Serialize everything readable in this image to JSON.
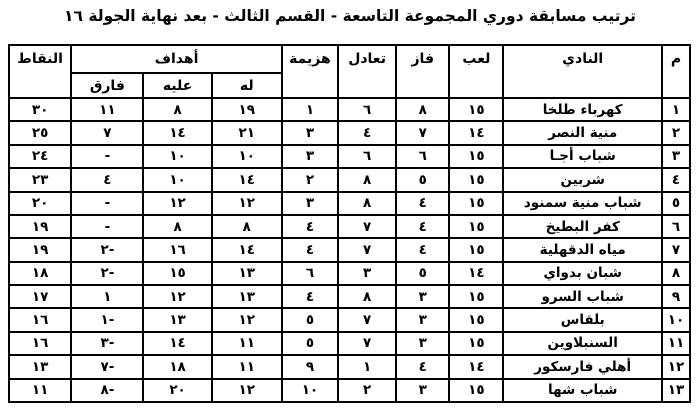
{
  "title": "ترتيب مسابقة دوري المجموعة التاسعة - القسم الثالث - بعد نهاية الجولة ١٦",
  "table": {
    "headers": {
      "rank": "م",
      "club": "النادي",
      "played": "لعب",
      "won": "فاز",
      "drawn": "تعادل",
      "lost": "هزيمة",
      "goals_group": "أهداف",
      "goals_for": "له",
      "goals_against": "عليه",
      "goal_diff": "فارق",
      "points": "النقاط"
    },
    "rows": [
      {
        "rank": "١",
        "club": "كهرباء طلخا",
        "played": "١٥",
        "won": "٨",
        "drawn": "٦",
        "lost": "١",
        "goals_for": "١٩",
        "goals_against": "٨",
        "goal_diff": "١١",
        "points": "٣٠"
      },
      {
        "rank": "٢",
        "club": "منية النصر",
        "played": "١٤",
        "won": "٧",
        "drawn": "٤",
        "lost": "٣",
        "goals_for": "٢١",
        "goals_against": "١٤",
        "goal_diff": "٧",
        "points": "٢٥"
      },
      {
        "rank": "٣",
        "club": "شباب أجـا",
        "played": "١٥",
        "won": "٦",
        "drawn": "٦",
        "lost": "٣",
        "goals_for": "١٠",
        "goals_against": "١٠",
        "goal_diff": "-",
        "points": "٢٤"
      },
      {
        "rank": "٤",
        "club": "شربين",
        "played": "١٥",
        "won": "٥",
        "drawn": "٨",
        "lost": "٢",
        "goals_for": "١٤",
        "goals_against": "١٠",
        "goal_diff": "٤",
        "points": "٢٣"
      },
      {
        "rank": "٥",
        "club": "شباب منية سمنود",
        "played": "١٥",
        "won": "٤",
        "drawn": "٨",
        "lost": "٣",
        "goals_for": "١٢",
        "goals_against": "١٢",
        "goal_diff": "-",
        "points": "٢٠"
      },
      {
        "rank": "٦",
        "club": "كفر البطيخ",
        "played": "١٥",
        "won": "٤",
        "drawn": "٧",
        "lost": "٤",
        "goals_for": "٨",
        "goals_against": "٨",
        "goal_diff": "-",
        "points": "١٩"
      },
      {
        "rank": "٧",
        "club": "مياه الدقهلية",
        "played": "١٥",
        "won": "٤",
        "drawn": "٧",
        "lost": "٤",
        "goals_for": "١٤",
        "goals_against": "١٦",
        "goal_diff": "٢-",
        "points": "١٩"
      },
      {
        "rank": "٨",
        "club": "شبان بدواي",
        "played": "١٤",
        "won": "٥",
        "drawn": "٣",
        "lost": "٦",
        "goals_for": "١٣",
        "goals_against": "١٥",
        "goal_diff": "٢-",
        "points": "١٨"
      },
      {
        "rank": "٩",
        "club": "شباب السرو",
        "played": "١٥",
        "won": "٣",
        "drawn": "٨",
        "lost": "٤",
        "goals_for": "١٣",
        "goals_against": "١٢",
        "goal_diff": "١",
        "points": "١٧"
      },
      {
        "rank": "١٠",
        "club": "بلقاس",
        "played": "١٥",
        "won": "٣",
        "drawn": "٧",
        "lost": "٥",
        "goals_for": "١٢",
        "goals_against": "١٣",
        "goal_diff": "١-",
        "points": "١٦"
      },
      {
        "rank": "١١",
        "club": "السنبلاوين",
        "played": "١٥",
        "won": "٣",
        "drawn": "٧",
        "lost": "٥",
        "goals_for": "١١",
        "goals_against": "١٤",
        "goal_diff": "٣-",
        "points": "١٦"
      },
      {
        "rank": "١٢",
        "club": "أهلي فارسكور",
        "played": "١٤",
        "won": "٤",
        "drawn": "١",
        "lost": "٩",
        "goals_for": "١١",
        "goals_against": "١٨",
        "goal_diff": "٧-",
        "points": "١٣"
      },
      {
        "rank": "١٣",
        "club": "شباب شها",
        "played": "١٥",
        "won": "٣",
        "drawn": "٢",
        "lost": "١٠",
        "goals_for": "١٢",
        "goals_against": "٢٠",
        "goal_diff": "٨-",
        "points": "١١"
      }
    ]
  }
}
